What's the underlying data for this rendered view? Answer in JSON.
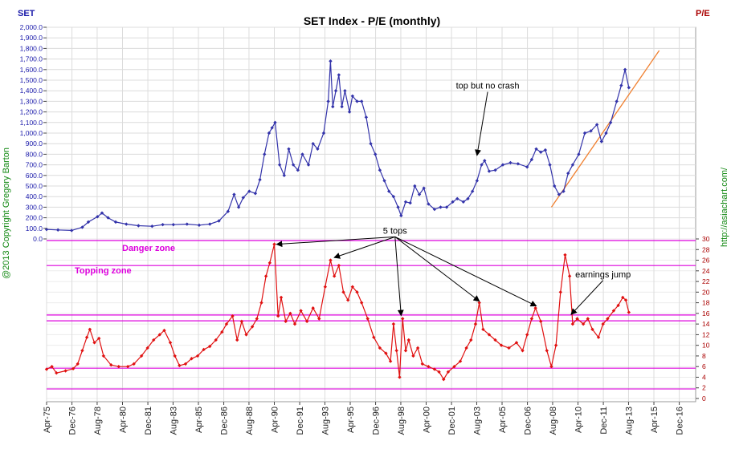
{
  "chart_data": {
    "type": "line",
    "title": "SET Index - P/E (monthly)",
    "left_axis_label": "SET",
    "right_axis_label": "P/E",
    "copyright": "@2013  Copyright Gregory Barton",
    "site": "http://asiachart.com/",
    "colors": {
      "set": "#3333aa",
      "pe": "#e01010",
      "zone": "#dd00dd",
      "trend": "#f08030",
      "grid": "#dcdcdc",
      "left_axis_text": "#1a1aaa",
      "right_axis_text": "#aa0000"
    },
    "set_axis": {
      "min": 0,
      "max": 2000,
      "step": 100,
      "ticks": [
        "0.0",
        "100.0",
        "200.0",
        "300.0",
        "400.0",
        "500.0",
        "600.0",
        "700.0",
        "800.0",
        "900.0",
        "1,000.0",
        "1,100.0",
        "1,200.0",
        "1,300.0",
        "1,400.0",
        "1,500.0",
        "1,600.0",
        "1,700.0",
        "1,800.0",
        "1,900.0",
        "2,000.0"
      ]
    },
    "pe_axis": {
      "min": 0,
      "max": 30,
      "step": 2,
      "ticks": [
        "0",
        "2",
        "4",
        "6",
        "8",
        "10",
        "12",
        "14",
        "16",
        "18",
        "20",
        "22",
        "24",
        "26",
        "28",
        "30"
      ]
    },
    "x_axis": {
      "start": 1975.25,
      "end": 2018.0,
      "ticks": [
        {
          "label": "Apr-75",
          "t": 1975.25
        },
        {
          "label": "Dec-76",
          "t": 1976.92
        },
        {
          "label": "Aug-78",
          "t": 1978.58
        },
        {
          "label": "Apr-80",
          "t": 1980.25
        },
        {
          "label": "Dec-81",
          "t": 1981.92
        },
        {
          "label": "Aug-83",
          "t": 1983.58
        },
        {
          "label": "Apr-85",
          "t": 1985.25
        },
        {
          "label": "Dec-86",
          "t": 1986.92
        },
        {
          "label": "Aug-88",
          "t": 1988.58
        },
        {
          "label": "Apr-90",
          "t": 1990.25
        },
        {
          "label": "Dec-91",
          "t": 1991.92
        },
        {
          "label": "Aug-93",
          "t": 1993.58
        },
        {
          "label": "Apr-95",
          "t": 1995.25
        },
        {
          "label": "Dec-96",
          "t": 1996.92
        },
        {
          "label": "Aug-98",
          "t": 1998.58
        },
        {
          "label": "Apr-00",
          "t": 2000.25
        },
        {
          "label": "Dec-01",
          "t": 2001.92
        },
        {
          "label": "Aug-03",
          "t": 2003.58
        },
        {
          "label": "Apr-05",
          "t": 2005.25
        },
        {
          "label": "Dec-06",
          "t": 2006.92
        },
        {
          "label": "Aug-08",
          "t": 2008.58
        },
        {
          "label": "Apr-10",
          "t": 2010.25
        },
        {
          "label": "Dec-11",
          "t": 2011.92
        },
        {
          "label": "Aug-13",
          "t": 2013.58
        },
        {
          "label": "Apr-15",
          "t": 2015.25
        },
        {
          "label": "Dec-16",
          "t": 2016.92
        }
      ]
    },
    "zones": [
      {
        "name": "Danger zone",
        "from": 25.0,
        "to": 29.7
      },
      {
        "name": "Topping zone",
        "from": 14.6,
        "to": 15.7
      },
      {
        "name": "",
        "from": 1.8,
        "to": 5.7
      }
    ],
    "series": [
      {
        "name": "SET",
        "axis": "set",
        "points": [
          [
            1975.25,
            90
          ],
          [
            1976.0,
            85
          ],
          [
            1976.9,
            80
          ],
          [
            1977.6,
            110
          ],
          [
            1978.0,
            160
          ],
          [
            1978.6,
            210
          ],
          [
            1978.9,
            245
          ],
          [
            1979.3,
            200
          ],
          [
            1979.8,
            160
          ],
          [
            1980.5,
            140
          ],
          [
            1981.3,
            125
          ],
          [
            1982.2,
            120
          ],
          [
            1982.9,
            135
          ],
          [
            1983.6,
            135
          ],
          [
            1984.5,
            140
          ],
          [
            1985.3,
            130
          ],
          [
            1986.0,
            140
          ],
          [
            1986.6,
            170
          ],
          [
            1987.2,
            260
          ],
          [
            1987.6,
            420
          ],
          [
            1987.9,
            300
          ],
          [
            1988.2,
            390
          ],
          [
            1988.6,
            450
          ],
          [
            1989.0,
            430
          ],
          [
            1989.3,
            560
          ],
          [
            1989.6,
            800
          ],
          [
            1989.9,
            1000
          ],
          [
            1990.1,
            1050
          ],
          [
            1990.3,
            1100
          ],
          [
            1990.6,
            700
          ],
          [
            1990.9,
            600
          ],
          [
            1991.2,
            850
          ],
          [
            1991.5,
            700
          ],
          [
            1991.8,
            650
          ],
          [
            1992.1,
            800
          ],
          [
            1992.5,
            700
          ],
          [
            1992.8,
            900
          ],
          [
            1993.1,
            850
          ],
          [
            1993.5,
            1000
          ],
          [
            1993.8,
            1300
          ],
          [
            1993.95,
            1680
          ],
          [
            1994.1,
            1250
          ],
          [
            1994.3,
            1400
          ],
          [
            1994.5,
            1550
          ],
          [
            1994.7,
            1250
          ],
          [
            1994.9,
            1400
          ],
          [
            1995.2,
            1200
          ],
          [
            1995.4,
            1350
          ],
          [
            1995.7,
            1300
          ],
          [
            1996.0,
            1300
          ],
          [
            1996.3,
            1150
          ],
          [
            1996.6,
            900
          ],
          [
            1996.9,
            800
          ],
          [
            1997.2,
            650
          ],
          [
            1997.5,
            550
          ],
          [
            1997.8,
            450
          ],
          [
            1998.1,
            400
          ],
          [
            1998.4,
            300
          ],
          [
            1998.6,
            220
          ],
          [
            1998.9,
            350
          ],
          [
            1999.2,
            340
          ],
          [
            1999.5,
            500
          ],
          [
            1999.8,
            420
          ],
          [
            2000.1,
            480
          ],
          [
            2000.4,
            330
          ],
          [
            2000.8,
            280
          ],
          [
            2001.2,
            300
          ],
          [
            2001.6,
            300
          ],
          [
            2002.0,
            350
          ],
          [
            2002.3,
            380
          ],
          [
            2002.7,
            350
          ],
          [
            2003.0,
            380
          ],
          [
            2003.3,
            450
          ],
          [
            2003.6,
            550
          ],
          [
            2003.9,
            700
          ],
          [
            2004.1,
            740
          ],
          [
            2004.4,
            640
          ],
          [
            2004.8,
            650
          ],
          [
            2005.3,
            700
          ],
          [
            2005.8,
            720
          ],
          [
            2006.3,
            710
          ],
          [
            2006.9,
            680
          ],
          [
            2007.2,
            750
          ],
          [
            2007.5,
            850
          ],
          [
            2007.8,
            820
          ],
          [
            2008.1,
            840
          ],
          [
            2008.4,
            700
          ],
          [
            2008.7,
            500
          ],
          [
            2009.0,
            420
          ],
          [
            2009.3,
            450
          ],
          [
            2009.6,
            620
          ],
          [
            2009.9,
            700
          ],
          [
            2010.3,
            800
          ],
          [
            2010.7,
            1000
          ],
          [
            2011.1,
            1020
          ],
          [
            2011.5,
            1080
          ],
          [
            2011.8,
            920
          ],
          [
            2012.1,
            1000
          ],
          [
            2012.4,
            1100
          ],
          [
            2012.8,
            1300
          ],
          [
            2013.1,
            1450
          ],
          [
            2013.35,
            1600
          ],
          [
            2013.6,
            1430
          ]
        ]
      },
      {
        "name": "P/E",
        "axis": "pe",
        "points": [
          [
            1975.25,
            5.5
          ],
          [
            1975.6,
            6.0
          ],
          [
            1975.9,
            4.8
          ],
          [
            1976.5,
            5.2
          ],
          [
            1977.0,
            5.6
          ],
          [
            1977.3,
            6.5
          ],
          [
            1977.6,
            9.0
          ],
          [
            1977.9,
            11.5
          ],
          [
            1978.1,
            13.0
          ],
          [
            1978.4,
            10.5
          ],
          [
            1978.7,
            11.3
          ],
          [
            1979.0,
            8.0
          ],
          [
            1979.5,
            6.3
          ],
          [
            1980.0,
            6.0
          ],
          [
            1980.6,
            6.0
          ],
          [
            1981.0,
            6.5
          ],
          [
            1981.5,
            8.0
          ],
          [
            1981.9,
            9.5
          ],
          [
            1982.3,
            11.0
          ],
          [
            1982.7,
            12.0
          ],
          [
            1983.0,
            12.8
          ],
          [
            1983.4,
            10.5
          ],
          [
            1983.7,
            8.0
          ],
          [
            1984.0,
            6.2
          ],
          [
            1984.4,
            6.5
          ],
          [
            1984.8,
            7.5
          ],
          [
            1985.2,
            8.0
          ],
          [
            1985.6,
            9.2
          ],
          [
            1986.0,
            9.8
          ],
          [
            1986.4,
            11.0
          ],
          [
            1986.8,
            12.5
          ],
          [
            1987.1,
            14.0
          ],
          [
            1987.5,
            15.5
          ],
          [
            1987.8,
            11.0
          ],
          [
            1988.1,
            14.5
          ],
          [
            1988.4,
            12.0
          ],
          [
            1988.8,
            13.5
          ],
          [
            1989.1,
            15.0
          ],
          [
            1989.4,
            18.0
          ],
          [
            1989.7,
            23.0
          ],
          [
            1989.95,
            25.5
          ],
          [
            1990.25,
            29.0
          ],
          [
            1990.5,
            15.5
          ],
          [
            1990.7,
            19.0
          ],
          [
            1991.0,
            14.5
          ],
          [
            1991.3,
            16.0
          ],
          [
            1991.6,
            14.0
          ],
          [
            1992.0,
            16.5
          ],
          [
            1992.4,
            14.5
          ],
          [
            1992.8,
            17.0
          ],
          [
            1993.2,
            15.0
          ],
          [
            1993.6,
            21.0
          ],
          [
            1993.95,
            26.0
          ],
          [
            1994.2,
            23.0
          ],
          [
            1994.5,
            25.0
          ],
          [
            1994.8,
            20.0
          ],
          [
            1995.1,
            18.5
          ],
          [
            1995.4,
            21.0
          ],
          [
            1995.7,
            20.0
          ],
          [
            1996.0,
            18.0
          ],
          [
            1996.4,
            15.0
          ],
          [
            1996.8,
            11.5
          ],
          [
            1997.2,
            9.5
          ],
          [
            1997.6,
            8.5
          ],
          [
            1997.9,
            7.0
          ],
          [
            1998.1,
            14.0
          ],
          [
            1998.3,
            9.0
          ],
          [
            1998.5,
            4.0
          ],
          [
            1998.7,
            15.0
          ],
          [
            1998.9,
            9.0
          ],
          [
            1999.1,
            11.0
          ],
          [
            1999.4,
            8.0
          ],
          [
            1999.7,
            9.5
          ],
          [
            2000.0,
            6.5
          ],
          [
            2000.4,
            6.0
          ],
          [
            2000.8,
            5.5
          ],
          [
            2001.1,
            5.0
          ],
          [
            2001.4,
            3.6
          ],
          [
            2001.7,
            5.0
          ],
          [
            2002.1,
            6.0
          ],
          [
            2002.5,
            7.0
          ],
          [
            2002.9,
            9.5
          ],
          [
            2003.2,
            11.0
          ],
          [
            2003.5,
            14.0
          ],
          [
            2003.75,
            18.0
          ],
          [
            2004.0,
            13.0
          ],
          [
            2004.4,
            12.0
          ],
          [
            2004.8,
            11.0
          ],
          [
            2005.2,
            10.0
          ],
          [
            2005.7,
            9.5
          ],
          [
            2006.2,
            10.5
          ],
          [
            2006.6,
            9.0
          ],
          [
            2006.9,
            12.0
          ],
          [
            2007.2,
            15.0
          ],
          [
            2007.45,
            17.0
          ],
          [
            2007.8,
            14.5
          ],
          [
            2008.2,
            9.0
          ],
          [
            2008.5,
            6.0
          ],
          [
            2008.8,
            10.0
          ],
          [
            2009.1,
            20.0
          ],
          [
            2009.4,
            27.0
          ],
          [
            2009.7,
            23.0
          ],
          [
            2009.9,
            14.0
          ],
          [
            2010.2,
            15.0
          ],
          [
            2010.6,
            14.0
          ],
          [
            2010.9,
            15.0
          ],
          [
            2011.2,
            13.0
          ],
          [
            2011.6,
            11.5
          ],
          [
            2011.9,
            14.0
          ],
          [
            2012.2,
            15.0
          ],
          [
            2012.6,
            16.5
          ],
          [
            2012.9,
            17.5
          ],
          [
            2013.2,
            19.0
          ],
          [
            2013.4,
            18.5
          ],
          [
            2013.6,
            16.2
          ]
        ]
      }
    ],
    "trendline": {
      "from": [
        2008.5,
        300
      ],
      "to": [
        2015.6,
        1780
      ]
    },
    "annotations": [
      {
        "text": "top but no crash",
        "at": [
          2004.3,
          1420
        ],
        "axis": "set",
        "arrows": [
          {
            "to": [
              2003.6,
              790
            ],
            "axis": "set"
          }
        ]
      },
      {
        "text": "5 tops",
        "at": [
          1998.2,
          31.0
        ],
        "axis": "pe",
        "arrows": [
          {
            "to": [
              1990.4,
              29.0
            ],
            "axis": "pe"
          },
          {
            "to": [
              1994.2,
              26.5
            ],
            "axis": "pe"
          },
          {
            "to": [
              1998.6,
              15.6
            ],
            "axis": "pe"
          },
          {
            "to": [
              2003.75,
              18.3
            ],
            "axis": "pe"
          },
          {
            "to": [
              2007.5,
              17.4
            ],
            "axis": "pe"
          }
        ]
      },
      {
        "text": "earnings jump",
        "at": [
          2011.9,
          22.8
        ],
        "axis": "pe",
        "arrows": [
          {
            "to": [
              2009.8,
              15.8
            ],
            "axis": "pe"
          }
        ]
      }
    ]
  }
}
